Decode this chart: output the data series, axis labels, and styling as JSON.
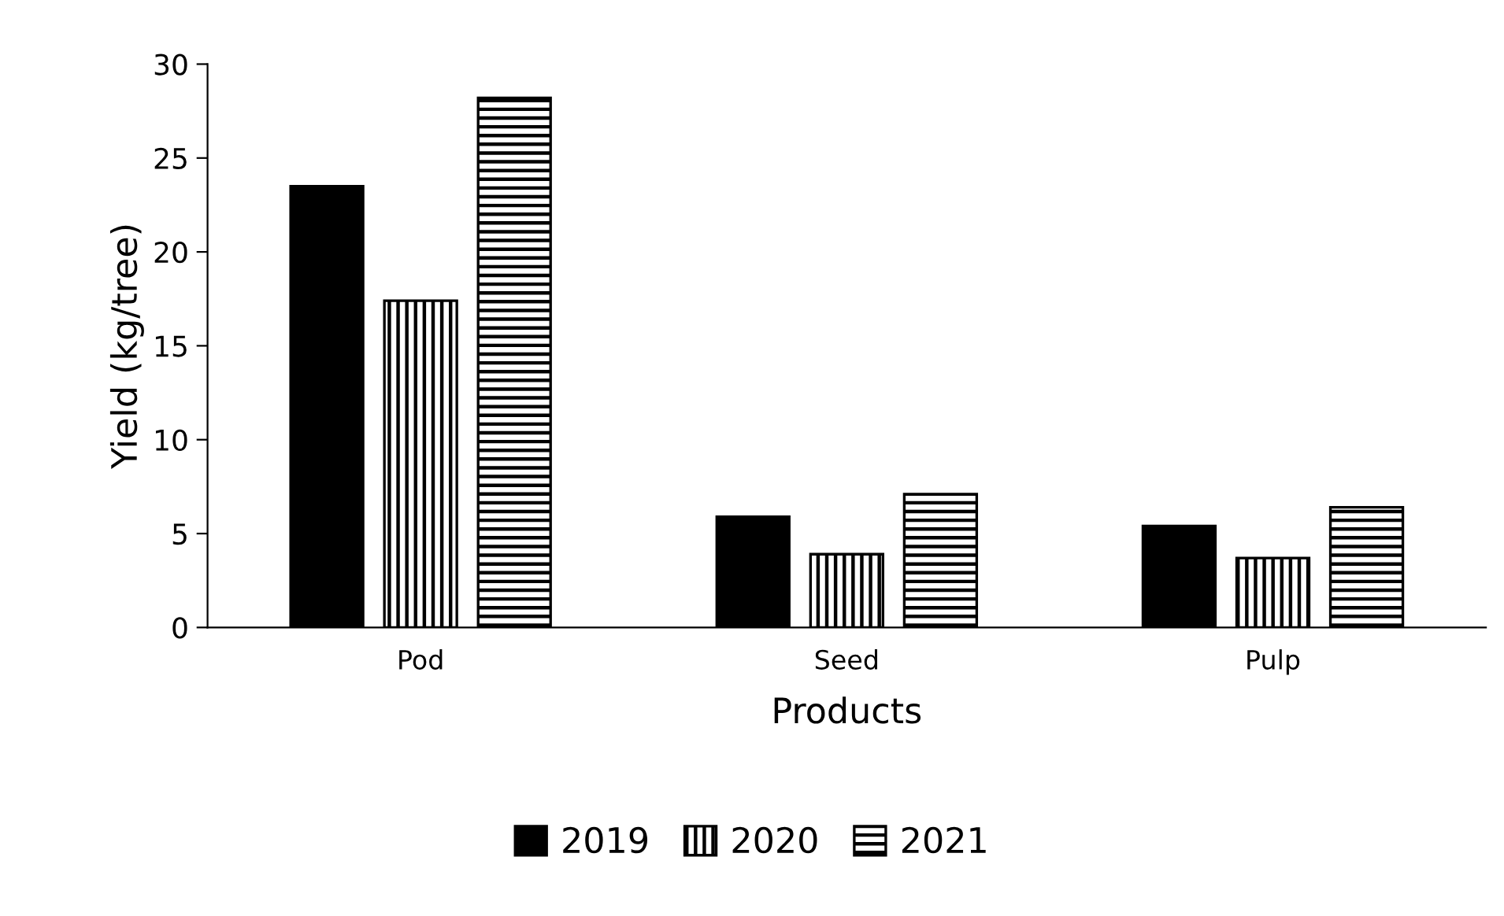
{
  "chart_data": {
    "type": "bar",
    "xlabel": "Products",
    "ylabel": "Yield (kg/tree)",
    "categories": [
      "Pod",
      "Seed",
      "Pulp"
    ],
    "series": [
      {
        "name": "2019",
        "color": "#000000",
        "values": [
          23.5,
          5.9,
          5.4
        ]
      },
      {
        "name": "2020",
        "color": "#000000",
        "values": [
          17.4,
          3.9,
          3.7
        ]
      },
      {
        "name": "2021",
        "color": "#000000",
        "values": [
          28.2,
          7.1,
          6.4
        ]
      }
    ],
    "ylim": [
      0,
      30
    ],
    "yticks": [
      0,
      5,
      10,
      15,
      20,
      25,
      30
    ],
    "grid": false,
    "legend": "bottom"
  }
}
